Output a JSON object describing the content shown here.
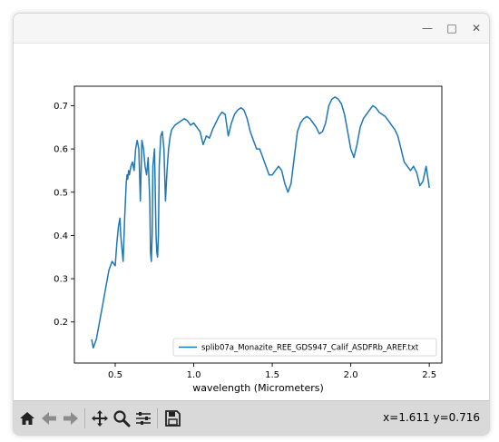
{
  "window": {
    "minimize_glyph": "—",
    "maximize_glyph": "□",
    "close_glyph": "✕"
  },
  "toolbar": {
    "tools": [
      {
        "name": "home-icon"
      },
      {
        "name": "back-arrow-icon"
      },
      {
        "name": "forward-arrow-icon"
      },
      {
        "name": "pan-move-icon"
      },
      {
        "name": "zoom-magnifier-icon"
      },
      {
        "name": "configure-subplots-icon"
      },
      {
        "name": "save-floppy-icon"
      }
    ],
    "coords": "x=1.611 y=0.716"
  },
  "chart_data": {
    "type": "line",
    "title": "",
    "xlabel": "wavelength (Micrometers)",
    "ylabel": "",
    "xlim": [
      0.24,
      2.58
    ],
    "ylim": [
      0.105,
      0.745
    ],
    "xticks": [
      0.5,
      1.0,
      1.5,
      2.0,
      2.5
    ],
    "xtick_labels": [
      "0.5",
      "1.0",
      "1.5",
      "2.0",
      "2.5"
    ],
    "yticks": [
      0.2,
      0.3,
      0.4,
      0.5,
      0.6,
      0.7
    ],
    "ytick_labels": [
      "0.2",
      "0.3",
      "0.4",
      "0.5",
      "0.6",
      "0.7"
    ],
    "legend": {
      "placement": "lower-right"
    },
    "grid": false,
    "series": [
      {
        "name": "splib07a_Monazite_REE_GDS947_Calif_ASDFRb_AREF.txt",
        "color": "#1f77b4",
        "x": [
          0.35,
          0.36,
          0.38,
          0.4,
          0.42,
          0.44,
          0.46,
          0.48,
          0.5,
          0.51,
          0.52,
          0.53,
          0.535,
          0.55,
          0.56,
          0.57,
          0.575,
          0.58,
          0.585,
          0.59,
          0.6,
          0.61,
          0.62,
          0.63,
          0.64,
          0.65,
          0.66,
          0.67,
          0.68,
          0.69,
          0.7,
          0.71,
          0.72,
          0.725,
          0.73,
          0.735,
          0.74,
          0.75,
          0.76,
          0.765,
          0.77,
          0.775,
          0.78,
          0.79,
          0.8,
          0.81,
          0.82,
          0.83,
          0.84,
          0.85,
          0.86,
          0.88,
          0.9,
          0.92,
          0.94,
          0.96,
          0.98,
          1.0,
          1.02,
          1.04,
          1.06,
          1.07,
          1.08,
          1.1,
          1.12,
          1.14,
          1.16,
          1.18,
          1.2,
          1.22,
          1.24,
          1.25,
          1.26,
          1.28,
          1.3,
          1.32,
          1.34,
          1.36,
          1.38,
          1.4,
          1.42,
          1.44,
          1.46,
          1.48,
          1.5,
          1.52,
          1.54,
          1.56,
          1.58,
          1.6,
          1.62,
          1.64,
          1.66,
          1.68,
          1.7,
          1.72,
          1.74,
          1.76,
          1.78,
          1.8,
          1.82,
          1.84,
          1.86,
          1.88,
          1.9,
          1.92,
          1.94,
          1.96,
          1.98,
          2.0,
          2.02,
          2.04,
          2.06,
          2.08,
          2.1,
          2.12,
          2.14,
          2.16,
          2.18,
          2.2,
          2.22,
          2.24,
          2.26,
          2.28,
          2.3,
          2.32,
          2.34,
          2.36,
          2.38,
          2.4,
          2.42,
          2.44,
          2.46,
          2.48,
          2.5
        ],
        "values": [
          0.16,
          0.14,
          0.16,
          0.2,
          0.24,
          0.28,
          0.32,
          0.34,
          0.33,
          0.38,
          0.42,
          0.44,
          0.4,
          0.34,
          0.44,
          0.52,
          0.54,
          0.53,
          0.55,
          0.54,
          0.56,
          0.57,
          0.55,
          0.6,
          0.62,
          0.6,
          0.48,
          0.62,
          0.6,
          0.56,
          0.54,
          0.58,
          0.48,
          0.36,
          0.34,
          0.4,
          0.56,
          0.6,
          0.4,
          0.36,
          0.35,
          0.4,
          0.56,
          0.63,
          0.64,
          0.6,
          0.48,
          0.55,
          0.6,
          0.63,
          0.645,
          0.655,
          0.66,
          0.665,
          0.67,
          0.665,
          0.655,
          0.66,
          0.65,
          0.64,
          0.61,
          0.62,
          0.63,
          0.625,
          0.645,
          0.66,
          0.675,
          0.685,
          0.68,
          0.63,
          0.66,
          0.67,
          0.68,
          0.69,
          0.695,
          0.69,
          0.67,
          0.64,
          0.62,
          0.6,
          0.6,
          0.58,
          0.56,
          0.54,
          0.54,
          0.55,
          0.56,
          0.55,
          0.52,
          0.5,
          0.52,
          0.58,
          0.64,
          0.66,
          0.67,
          0.675,
          0.67,
          0.66,
          0.65,
          0.635,
          0.64,
          0.66,
          0.7,
          0.715,
          0.72,
          0.715,
          0.705,
          0.68,
          0.64,
          0.6,
          0.58,
          0.61,
          0.65,
          0.67,
          0.68,
          0.69,
          0.7,
          0.695,
          0.685,
          0.68,
          0.675,
          0.665,
          0.655,
          0.645,
          0.63,
          0.6,
          0.57,
          0.56,
          0.55,
          0.56,
          0.545,
          0.515,
          0.525,
          0.56,
          0.51
        ]
      }
    ]
  }
}
